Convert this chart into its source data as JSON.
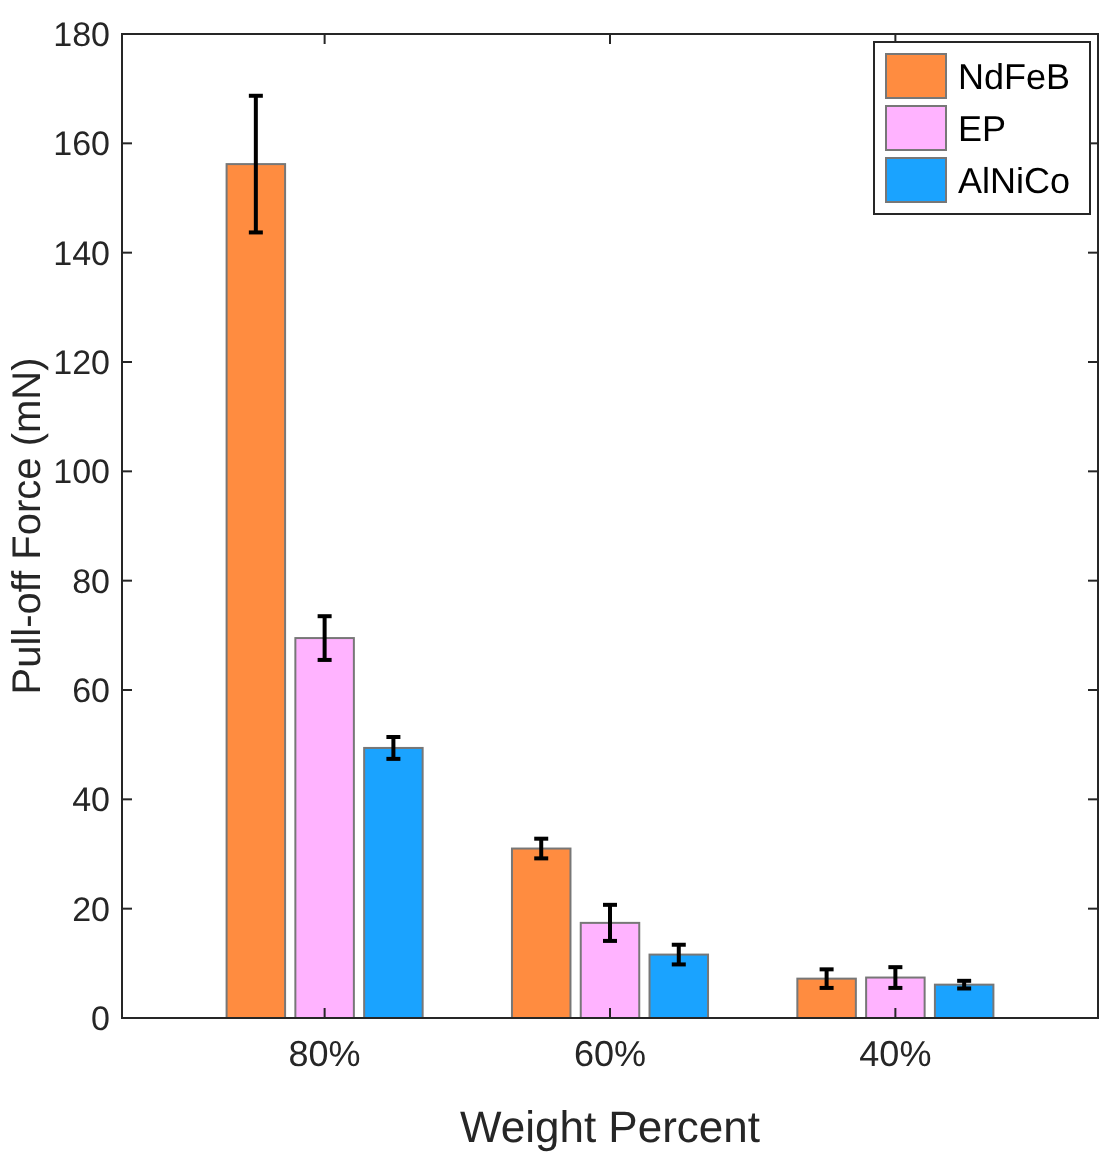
{
  "chart_data": {
    "type": "bar",
    "xlabel": "Weight Percent",
    "ylabel": "Pull-off Force (mN)",
    "categories": [
      "80%",
      "60%",
      "40%"
    ],
    "series": [
      {
        "name": "NdFeB",
        "color": "#ff8c40",
        "values": [
          156.2,
          31,
          7.2
        ],
        "errors": [
          12.5,
          1.8,
          1.7
        ]
      },
      {
        "name": "EP",
        "color": "#ffb3ff",
        "values": [
          69.5,
          17.4,
          7.4
        ],
        "errors": [
          4,
          3.3,
          1.9
        ]
      },
      {
        "name": "AlNiCo",
        "color": "#1aa3ff",
        "values": [
          49.4,
          11.6,
          6.1
        ],
        "errors": [
          2,
          1.8,
          0.7
        ]
      }
    ],
    "ylim": [
      0,
      180
    ],
    "yticks": [
      0,
      20,
      40,
      60,
      80,
      100,
      120,
      140,
      160,
      180
    ],
    "grid": false,
    "legend": "top right"
  }
}
